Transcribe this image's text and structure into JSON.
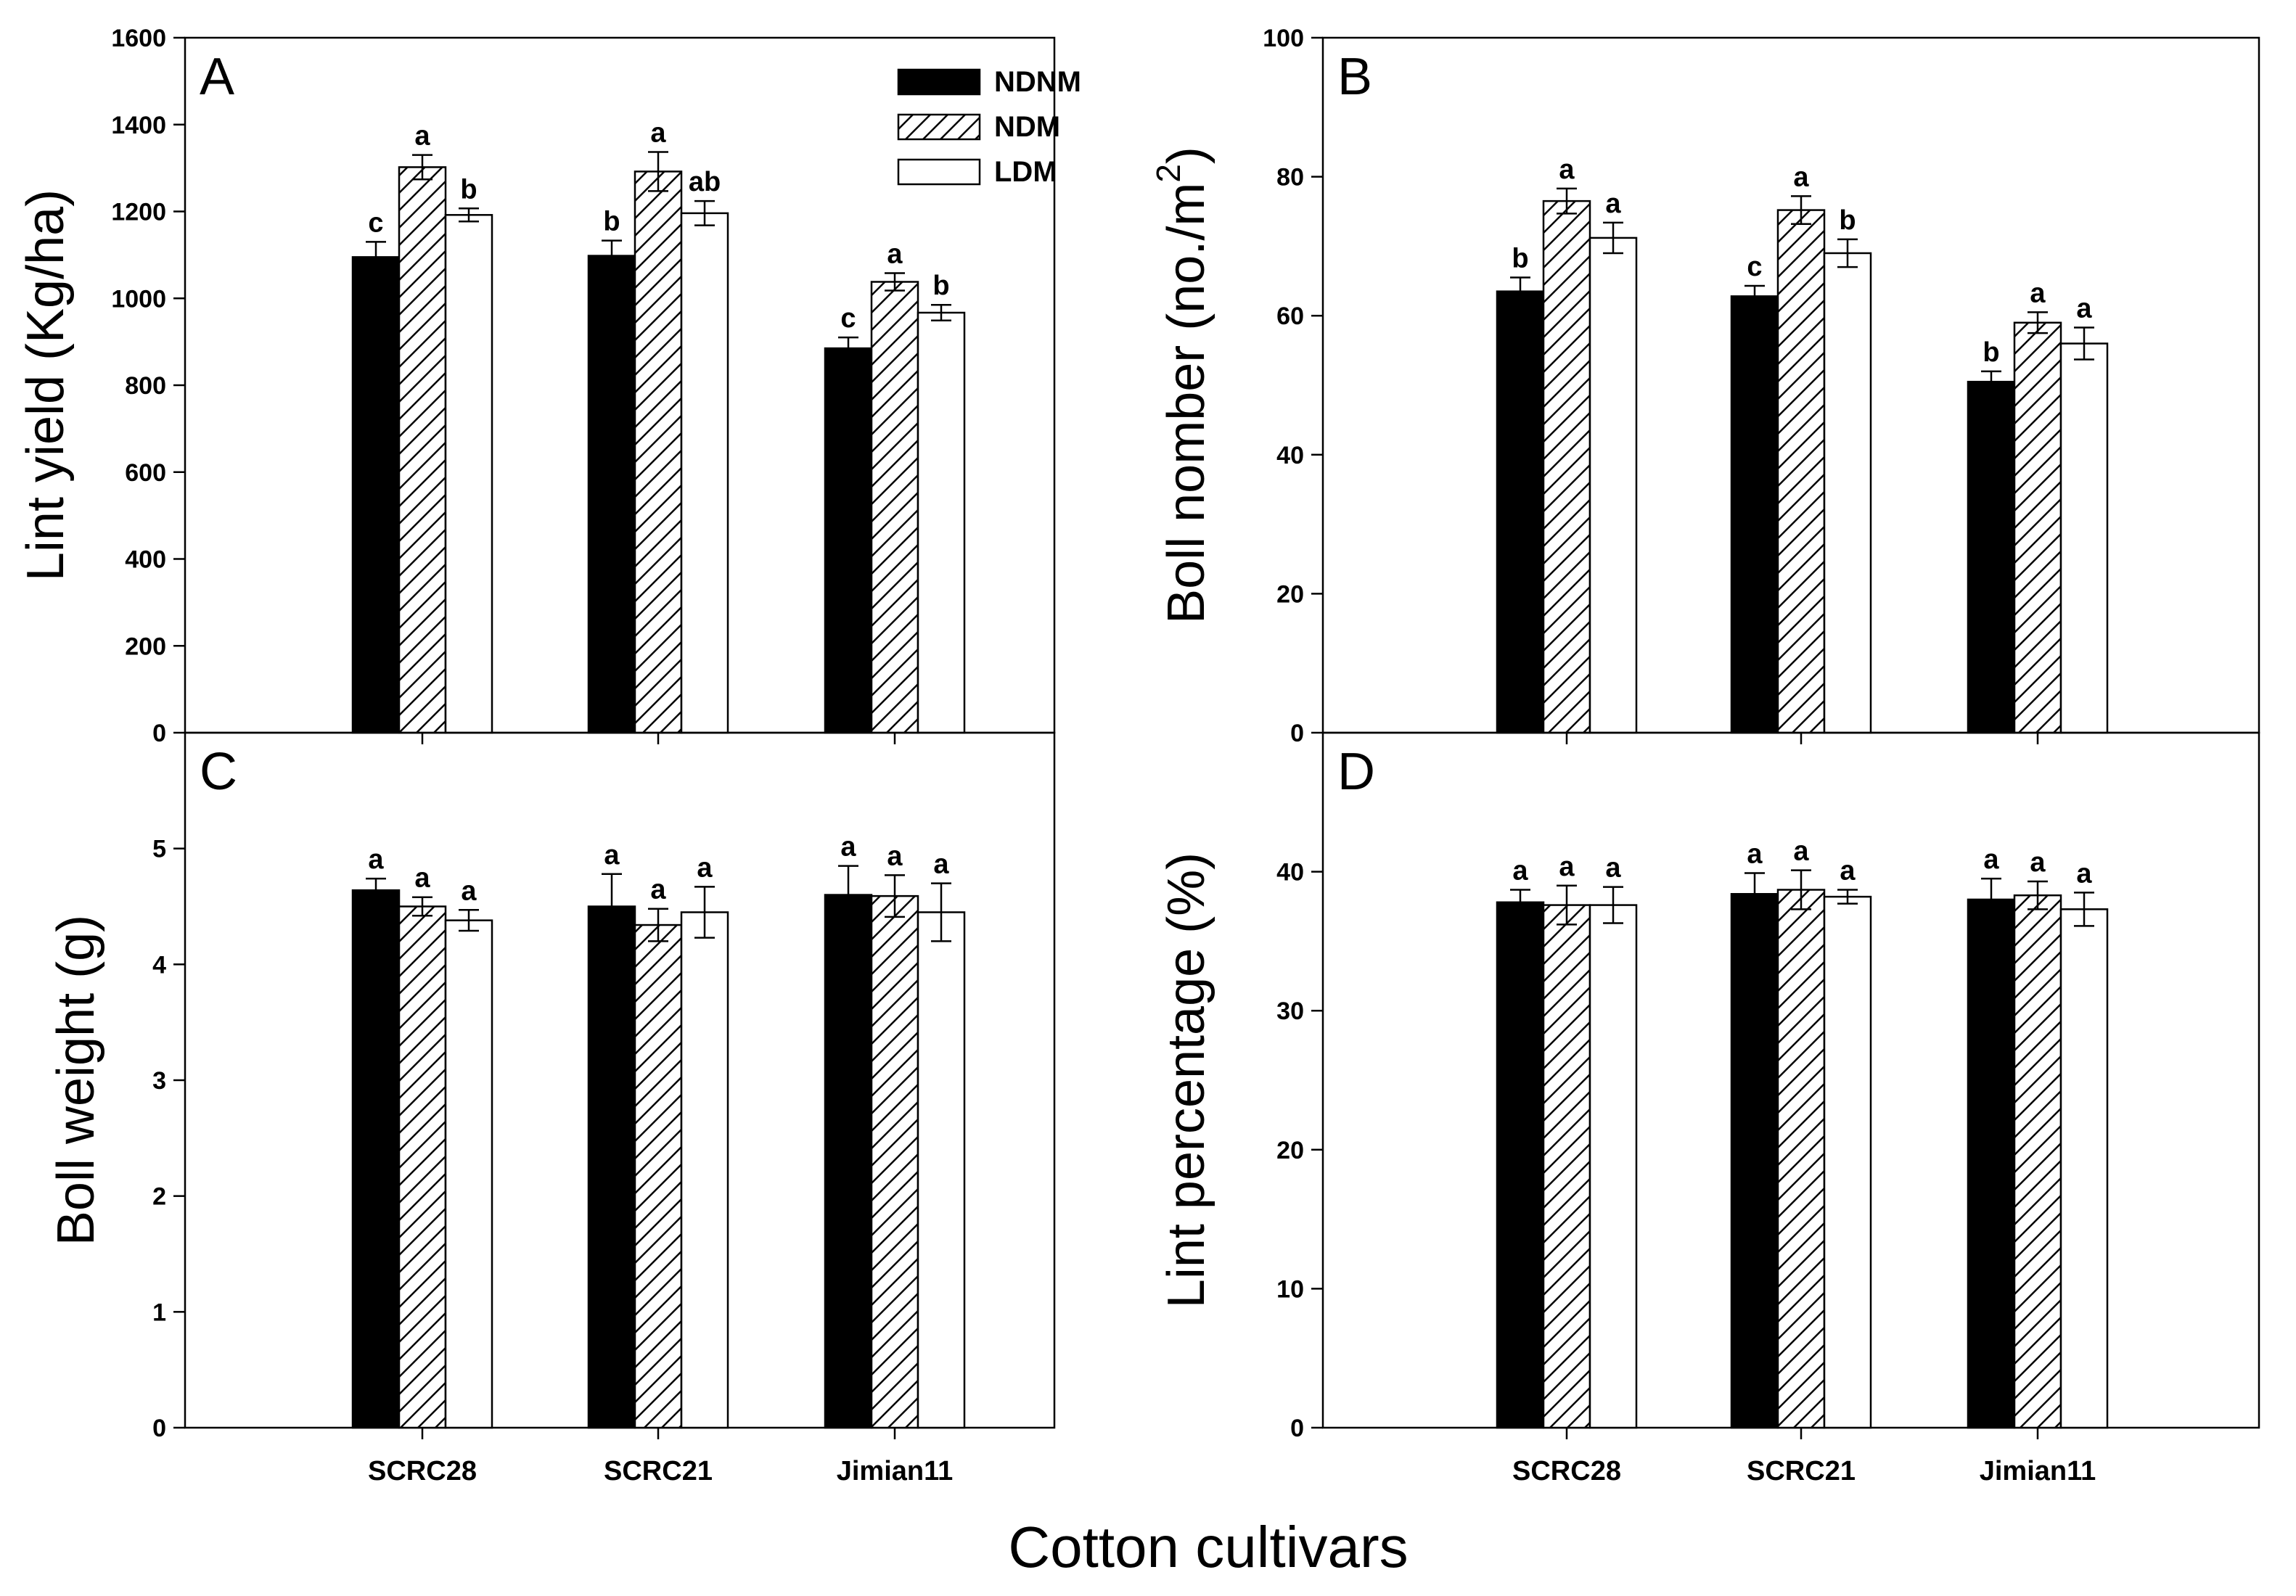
{
  "figure": {
    "xlabel": "Cotton cultivars"
  },
  "legend": {
    "entries": [
      {
        "name": "NDNM",
        "fill": "solid"
      },
      {
        "name": "NDM",
        "fill": "hatch"
      },
      {
        "name": "LDM",
        "fill": "open"
      }
    ]
  },
  "colors": {
    "solid": "#000000",
    "open": "#ffffff",
    "stroke": "#000000"
  },
  "chart_data": [
    {
      "type": "bar",
      "panel": "A",
      "ylabel": "Lint yield (Kg/ha)",
      "ylim": [
        0,
        1600
      ],
      "yticks": [
        0,
        200,
        400,
        600,
        800,
        1000,
        1200,
        1400,
        1600
      ],
      "categories": [
        "SCRC28",
        "SCRC21",
        "Jimian11"
      ],
      "series": [
        {
          "name": "NDNM",
          "values": [
            1095,
            1098,
            885
          ],
          "errors": [
            35,
            35,
            25
          ],
          "letters": [
            "c",
            "b",
            "c"
          ]
        },
        {
          "name": "NDM",
          "values": [
            1302,
            1292,
            1038
          ],
          "errors": [
            28,
            45,
            20
          ],
          "letters": [
            "a",
            "a",
            "a"
          ]
        },
        {
          "name": "LDM",
          "values": [
            1192,
            1196,
            967
          ],
          "errors": [
            15,
            28,
            18
          ],
          "letters": [
            "b",
            "ab",
            "b"
          ]
        }
      ]
    },
    {
      "type": "bar",
      "panel": "B",
      "ylabel": "Boll nomber (no./m",
      "ylabel_sup": "2",
      "ylabel_close": ")",
      "ylim": [
        0,
        100
      ],
      "yticks": [
        0,
        20,
        40,
        60,
        80,
        100
      ],
      "categories": [
        "SCRC28",
        "SCRC21",
        "Jimian11"
      ],
      "series": [
        {
          "name": "NDNM",
          "values": [
            63.5,
            62.8,
            50.5
          ],
          "errors": [
            2.0,
            1.5,
            1.5
          ],
          "letters": [
            "b",
            "c",
            "b"
          ]
        },
        {
          "name": "NDM",
          "values": [
            76.5,
            75.2,
            59.0
          ],
          "errors": [
            1.8,
            2.0,
            1.5
          ],
          "letters": [
            "a",
            "a",
            "a"
          ]
        },
        {
          "name": "LDM",
          "values": [
            71.2,
            69.0,
            56.0
          ],
          "errors": [
            2.2,
            2.0,
            2.3
          ],
          "letters": [
            "a",
            "b",
            "a"
          ]
        }
      ]
    },
    {
      "type": "bar",
      "panel": "C",
      "ylabel": "Boll weight (g)",
      "ylim": [
        0,
        6
      ],
      "yticks": [
        0,
        1,
        2,
        3,
        4,
        5
      ],
      "categories": [
        "SCRC28",
        "SCRC21",
        "Jimian11"
      ],
      "series": [
        {
          "name": "NDNM",
          "values": [
            4.64,
            4.5,
            4.6
          ],
          "errors": [
            0.1,
            0.28,
            0.25
          ],
          "letters": [
            "a",
            "a",
            "a"
          ]
        },
        {
          "name": "NDM",
          "values": [
            4.5,
            4.34,
            4.59
          ],
          "errors": [
            0.08,
            0.14,
            0.18
          ],
          "letters": [
            "a",
            "a",
            "a"
          ]
        },
        {
          "name": "LDM",
          "values": [
            4.38,
            4.45,
            4.45
          ],
          "errors": [
            0.09,
            0.22,
            0.25
          ],
          "letters": [
            "a",
            "a",
            "a"
          ]
        }
      ]
    },
    {
      "type": "bar",
      "panel": "D",
      "ylabel": "Lint percentage (%)",
      "ylim": [
        0,
        50
      ],
      "yticks": [
        0,
        10,
        20,
        30,
        40
      ],
      "categories": [
        "SCRC28",
        "SCRC21",
        "Jimian11"
      ],
      "series": [
        {
          "name": "NDNM",
          "values": [
            37.8,
            38.4,
            38.0
          ],
          "errors": [
            0.9,
            1.5,
            1.5
          ],
          "letters": [
            "a",
            "a",
            "a"
          ]
        },
        {
          "name": "NDM",
          "values": [
            37.6,
            38.7,
            38.3
          ],
          "errors": [
            1.4,
            1.4,
            1.0
          ],
          "letters": [
            "a",
            "a",
            "a"
          ]
        },
        {
          "name": "LDM",
          "values": [
            37.6,
            38.2,
            37.3
          ],
          "errors": [
            1.3,
            0.5,
            1.2
          ],
          "letters": [
            "a",
            "a",
            "a"
          ]
        }
      ]
    }
  ]
}
